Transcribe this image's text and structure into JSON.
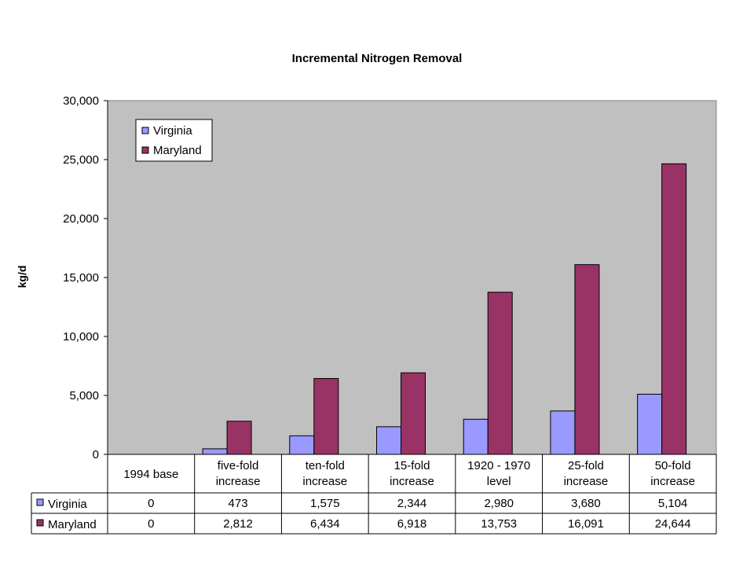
{
  "chart_data": {
    "type": "bar",
    "title": "Incremental Nitrogen Removal",
    "xlabel": "",
    "ylabel": "kg/d",
    "ylim": [
      0,
      30000
    ],
    "yticks": [
      0,
      5000,
      10000,
      15000,
      20000,
      25000,
      30000
    ],
    "ytick_labels": [
      "0",
      "5,000",
      "10,000",
      "15,000",
      "20,000",
      "25,000",
      "30,000"
    ],
    "grid": false,
    "legend_position": "top-left",
    "categories": [
      [
        "1994 base"
      ],
      [
        "five-fold",
        "increase"
      ],
      [
        "ten-fold",
        "increase"
      ],
      [
        "15-fold",
        "increase"
      ],
      [
        "1920 - 1970",
        "level"
      ],
      [
        "25-fold",
        "increase"
      ],
      [
        "50-fold",
        "increase"
      ]
    ],
    "series": [
      {
        "name": "Virginia",
        "color": "#9999ff",
        "values": [
          0,
          473,
          1575,
          2344,
          2980,
          3680,
          5104
        ],
        "labels": [
          "0",
          "473",
          "1,575",
          "2,344",
          "2,980",
          "3,680",
          "5,104"
        ]
      },
      {
        "name": "Maryland",
        "color": "#993366",
        "values": [
          0,
          2812,
          6434,
          6918,
          13753,
          16091,
          24644
        ],
        "labels": [
          "0",
          "2,812",
          "6,434",
          "6,918",
          "13,753",
          "16,091",
          "24,644"
        ]
      }
    ],
    "plot_background": "#c0c0c0"
  }
}
